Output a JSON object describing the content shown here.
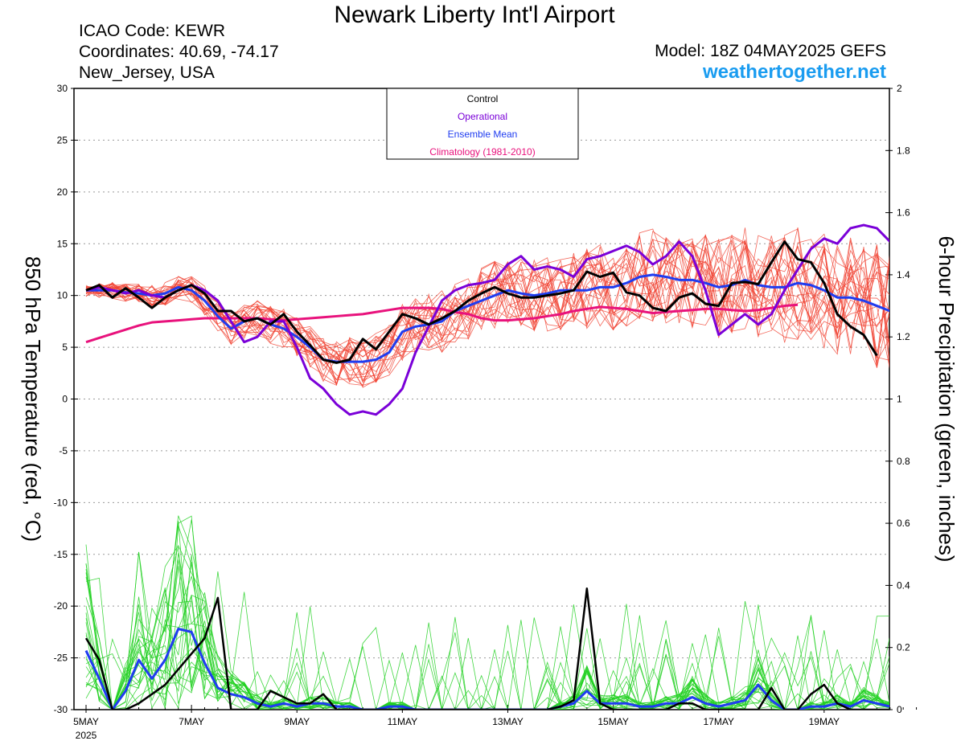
{
  "header": {
    "title": "Newark Liberty Int'l Airport",
    "icao": "ICAO Code: KEWR",
    "coords": "Coordinates: 40.69, -74.17",
    "location": "New_Jersey, USA",
    "model": "Model: 18Z 04MAY2025 GEFS",
    "site": "weathertogether.net"
  },
  "colors": {
    "control": "#000000",
    "operational": "#7a00d8",
    "ensemble_mean": "#1f3cf0",
    "climatology": "#e8127c",
    "members_temp": "#f04030",
    "members_precip": "#20d020",
    "site_link": "#1a9cf0"
  },
  "chart_data": {
    "type": "line",
    "title": "Newark Liberty Int'l Airport",
    "ylabel": "850 hPa Temperature (red, °C)",
    "y2label": "6-hour Precipitation (green, inches)",
    "ylim": [
      -30,
      30
    ],
    "y2lim": [
      0,
      2
    ],
    "yticks": [
      -30,
      -25,
      -20,
      -15,
      -10,
      -5,
      0,
      5,
      10,
      15,
      20,
      25,
      30
    ],
    "y2ticks": [
      "0",
      "0.2",
      "0.4",
      "0.6",
      "0.8",
      "1",
      "1.2",
      "1.4",
      "1.6",
      "1.8",
      "2"
    ],
    "xlim": [
      0,
      64
    ],
    "xticks": [
      {
        "x": 0,
        "label": "5MAY",
        "sub": "2025"
      },
      {
        "x": 8,
        "label": "7MAY"
      },
      {
        "x": 16,
        "label": "9MAY"
      },
      {
        "x": 24,
        "label": "11MAY"
      },
      {
        "x": 32,
        "label": "13MAY"
      },
      {
        "x": 40,
        "label": "15MAY"
      },
      {
        "x": 48,
        "label": "17MAY"
      },
      {
        "x": 56,
        "label": "19MAY"
      }
    ],
    "grid": true,
    "legend_position": "top-center",
    "legend": [
      {
        "label": "Control",
        "key": "control"
      },
      {
        "label": "Operational",
        "key": "operational"
      },
      {
        "label": "Ensemble Mean",
        "key": "ensemble_mean"
      },
      {
        "label": "Climatology (1981-2010)",
        "key": "climatology"
      }
    ],
    "temperature": {
      "control": [
        10.5,
        11,
        9.8,
        10.7,
        9.8,
        8.8,
        9.8,
        10.5,
        11,
        10.2,
        8.5,
        8.5,
        7.5,
        7.8,
        7.2,
        8.2,
        6.5,
        5.2,
        3.8,
        3.5,
        3.8,
        5.8,
        4.8,
        6.5,
        8.2,
        7.8,
        7.2,
        7.8,
        8.5,
        9.5,
        10.2,
        10.8,
        10.2,
        9.8,
        9.8,
        10,
        10.2,
        10.5,
        12.3,
        11.8,
        12.2,
        10.3,
        10,
        8.8,
        8.5,
        9.8,
        10.2,
        9.2,
        9,
        11.2,
        11.3,
        11.1,
        13.2,
        15.2,
        13.5,
        13.2,
        11.2,
        8.2,
        7,
        6.2,
        4.2
      ],
      "operational": [
        10.5,
        10.8,
        10.5,
        10.2,
        10.5,
        10,
        9.8,
        10.5,
        11,
        10.5,
        9.5,
        7.5,
        5.5,
        6,
        7.5,
        7.5,
        5,
        2,
        1,
        -0.5,
        -1.5,
        -1.2,
        -1.5,
        -0.5,
        1,
        4.5,
        7,
        9.5,
        10.5,
        11,
        11.2,
        11.5,
        13,
        13.8,
        12.5,
        12.8,
        12.5,
        11.8,
        13.5,
        13.8,
        14.3,
        14.8,
        14.2,
        13,
        13.8,
        15.2,
        13.8,
        10.5,
        6.2,
        7.2,
        8.2,
        7.2,
        8.2,
        10.5,
        12.5,
        14.5,
        15.5,
        15,
        16.5,
        16.8,
        16.5,
        15.2,
        13.8,
        13,
        12
      ],
      "ensemble_mean": [
        10.5,
        10.5,
        10.5,
        10.3,
        10.2,
        10,
        10.2,
        10.8,
        10.5,
        9.5,
        8,
        6.8,
        7.5,
        7.8,
        7.2,
        6.8,
        6,
        5,
        3.8,
        3.6,
        3.6,
        3.6,
        3.8,
        4.5,
        6.5,
        7,
        7.2,
        7.5,
        8.5,
        9,
        9.5,
        10,
        10.5,
        10.2,
        10,
        10.2,
        10.5,
        10.5,
        10.5,
        10.8,
        10.8,
        11.2,
        11.8,
        12,
        11.8,
        11.5,
        11.5,
        11.2,
        10.8,
        11,
        11.5,
        11,
        10.8,
        10.8,
        11.2,
        11,
        10.5,
        9.8,
        9.8,
        9.5,
        9,
        8.5
      ],
      "climatology": [
        5.5,
        5.9,
        6.3,
        6.7,
        7.1,
        7.4,
        7.5,
        7.6,
        7.7,
        7.8,
        7.8,
        7.8,
        7.8,
        7.8,
        7.7,
        7.6,
        7.7,
        7.8,
        7.9,
        8,
        8.1,
        8.2,
        8.4,
        8.6,
        8.8,
        8.8,
        8.8,
        8.7,
        8.4,
        8.2,
        7.8,
        7.6,
        7.6,
        7.7,
        7.8,
        8,
        8.2,
        8.5,
        8.7,
        8.9,
        8.8,
        8.7,
        8.5,
        8.3,
        8.4,
        8.5,
        8.6,
        8.7,
        8.7,
        8.6,
        8.5,
        8.6,
        8.8,
        9,
        9.1
      ]
    },
    "precipitation": {
      "control": [
        0.23,
        0.16,
        0,
        0,
        0.02,
        0.05,
        0.08,
        0.13,
        0.18,
        0.23,
        0.36,
        0,
        0,
        0,
        0.06,
        0.04,
        0.02,
        0.02,
        0.05,
        0,
        0,
        0,
        0,
        0,
        0,
        0,
        0,
        0,
        0,
        0,
        0,
        0,
        0,
        0,
        0,
        0,
        0.01,
        0.03,
        0.39,
        0.02,
        0,
        0,
        0,
        0,
        0,
        0.02,
        0.02,
        0,
        0,
        0,
        0,
        0,
        0.07,
        0,
        0,
        0.05,
        0.08,
        0.02,
        0,
        0,
        0,
        0
      ],
      "operational": [],
      "ensemble_mean": [
        0.19,
        0.1,
        0,
        0.06,
        0.16,
        0.1,
        0.16,
        0.26,
        0.25,
        0.15,
        0.07,
        0.05,
        0.04,
        0.02,
        0.01,
        0.02,
        0.01,
        0.02,
        0.02,
        0.01,
        0.01,
        0,
        0,
        0.01,
        0.01,
        0,
        0,
        0,
        0,
        0,
        0,
        0,
        0,
        0,
        0,
        0,
        0.01,
        0.02,
        0.06,
        0.02,
        0.02,
        0.02,
        0.01,
        0.01,
        0.02,
        0.02,
        0.04,
        0.02,
        0.01,
        0.02,
        0.03,
        0.08,
        0.03,
        0,
        0,
        0.01,
        0.01,
        0.02,
        0.01,
        0.03,
        0.02,
        0.01
      ]
    }
  }
}
